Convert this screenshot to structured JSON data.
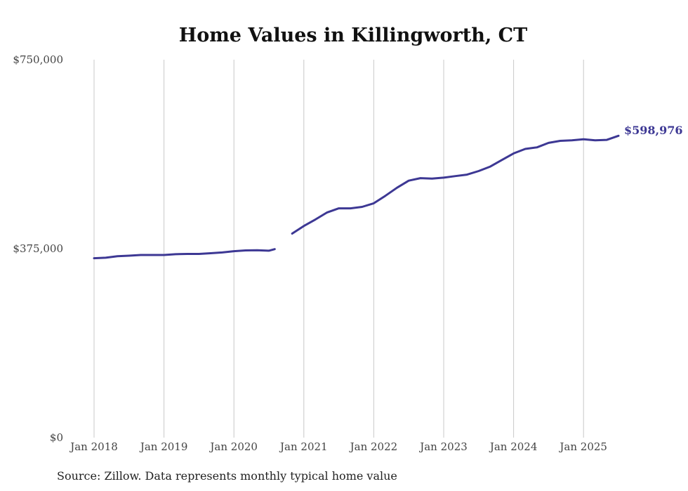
{
  "chart_data": {
    "type": "line",
    "title": "Home Values in Killingworth, CT",
    "xlabel": "",
    "ylabel": "",
    "source": "Source: Zillow. Data represents monthly typical home value",
    "x_ticks": [
      "Jan 2018",
      "Jan 2019",
      "Jan 2020",
      "Jan 2021",
      "Jan 2022",
      "Jan 2023",
      "Jan 2024",
      "Jan 2025"
    ],
    "y_ticks": [
      {
        "value": 0,
        "label": "$0"
      },
      {
        "value": 375000,
        "label": "$375,000"
      },
      {
        "value": 750000,
        "label": "$750,000"
      }
    ],
    "xlim": [
      "2018-01",
      "2025-07"
    ],
    "ylim": [
      0,
      750000
    ],
    "grid": {
      "vertical": true,
      "horizontal": false
    },
    "line_color": "#3d3894",
    "end_label": "$598,976",
    "series": [
      {
        "segments": [
          [
            [
              "2018-01",
              356000
            ],
            [
              "2018-03",
              357000
            ],
            [
              "2018-05",
              360000
            ],
            [
              "2018-07",
              361000
            ],
            [
              "2018-09",
              362500
            ],
            [
              "2018-11",
              362500
            ],
            [
              "2019-01",
              362500
            ],
            [
              "2019-03",
              364000
            ],
            [
              "2019-05",
              364500
            ],
            [
              "2019-07",
              364500
            ],
            [
              "2019-09",
              366000
            ],
            [
              "2019-11",
              367500
            ],
            [
              "2020-01",
              370000
            ],
            [
              "2020-03",
              371500
            ],
            [
              "2020-05",
              372000
            ],
            [
              "2020-07",
              371000
            ],
            [
              "2020-08",
              374000
            ]
          ],
          [
            [
              "2020-11",
              405000
            ],
            [
              "2021-01",
              420000
            ],
            [
              "2021-03",
              433000
            ],
            [
              "2021-05",
              447000
            ],
            [
              "2021-07",
              455000
            ],
            [
              "2021-09",
              455000
            ],
            [
              "2021-11",
              458000
            ],
            [
              "2022-01",
              465000
            ],
            [
              "2022-03",
              480000
            ],
            [
              "2022-05",
              496000
            ],
            [
              "2022-07",
              510000
            ],
            [
              "2022-09",
              515000
            ],
            [
              "2022-11",
              514000
            ],
            [
              "2023-01",
              516000
            ],
            [
              "2023-03",
              519000
            ],
            [
              "2023-05",
              522000
            ],
            [
              "2023-07",
              529000
            ],
            [
              "2023-09",
              538000
            ],
            [
              "2023-11",
              551000
            ],
            [
              "2024-01",
              564000
            ],
            [
              "2024-03",
              573000
            ],
            [
              "2024-05",
              576000
            ],
            [
              "2024-07",
              585000
            ],
            [
              "2024-09",
              589000
            ],
            [
              "2024-11",
              590000
            ],
            [
              "2025-01",
              592000
            ],
            [
              "2025-03",
              590000
            ],
            [
              "2025-05",
              591000
            ],
            [
              "2025-07",
              598976
            ]
          ]
        ]
      }
    ]
  }
}
